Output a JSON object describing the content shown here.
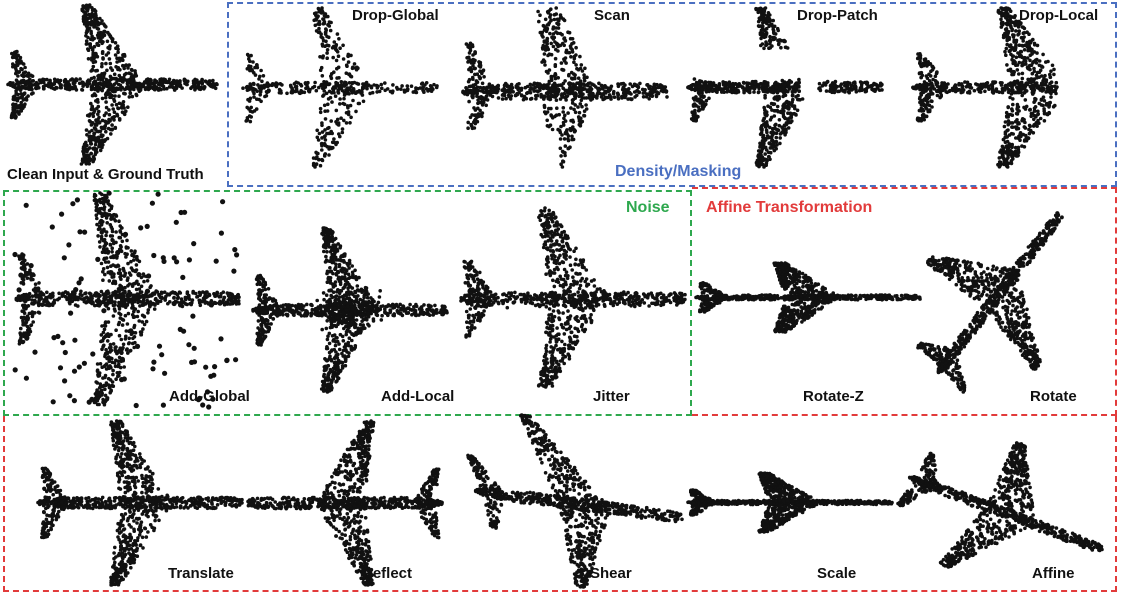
{
  "groups": {
    "density": {
      "label": "Density/Masking",
      "color": "#4a6fc1"
    },
    "noise": {
      "label": "Noise",
      "color": "#2ea84e"
    },
    "affine": {
      "label": "Affine Transformation",
      "color": "#e23b3b"
    }
  },
  "panels": [
    {
      "id": "clean",
      "label": "Clean Input & Ground Truth",
      "group": ""
    },
    {
      "id": "drop-global",
      "label": "Drop-Global",
      "group": "density"
    },
    {
      "id": "scan",
      "label": "Scan",
      "group": "density"
    },
    {
      "id": "drop-patch",
      "label": "Drop-Patch",
      "group": "density"
    },
    {
      "id": "drop-local",
      "label": "Drop-Local",
      "group": "density"
    },
    {
      "id": "add-global",
      "label": "Add-Global",
      "group": "noise"
    },
    {
      "id": "add-local",
      "label": "Add-Local",
      "group": "noise"
    },
    {
      "id": "jitter",
      "label": "Jitter",
      "group": "noise"
    },
    {
      "id": "rotate-z",
      "label": "Rotate-Z",
      "group": "affine"
    },
    {
      "id": "rotate",
      "label": "Rotate",
      "group": "affine"
    },
    {
      "id": "translate",
      "label": "Translate",
      "group": "affine"
    },
    {
      "id": "reflect",
      "label": "Reflect",
      "group": "affine"
    },
    {
      "id": "shear",
      "label": "Shear",
      "group": "affine"
    },
    {
      "id": "scale",
      "label": "Scale",
      "group": "affine"
    },
    {
      "id": "affine",
      "label": "Affine",
      "group": "affine"
    }
  ],
  "point_color": "#111111"
}
